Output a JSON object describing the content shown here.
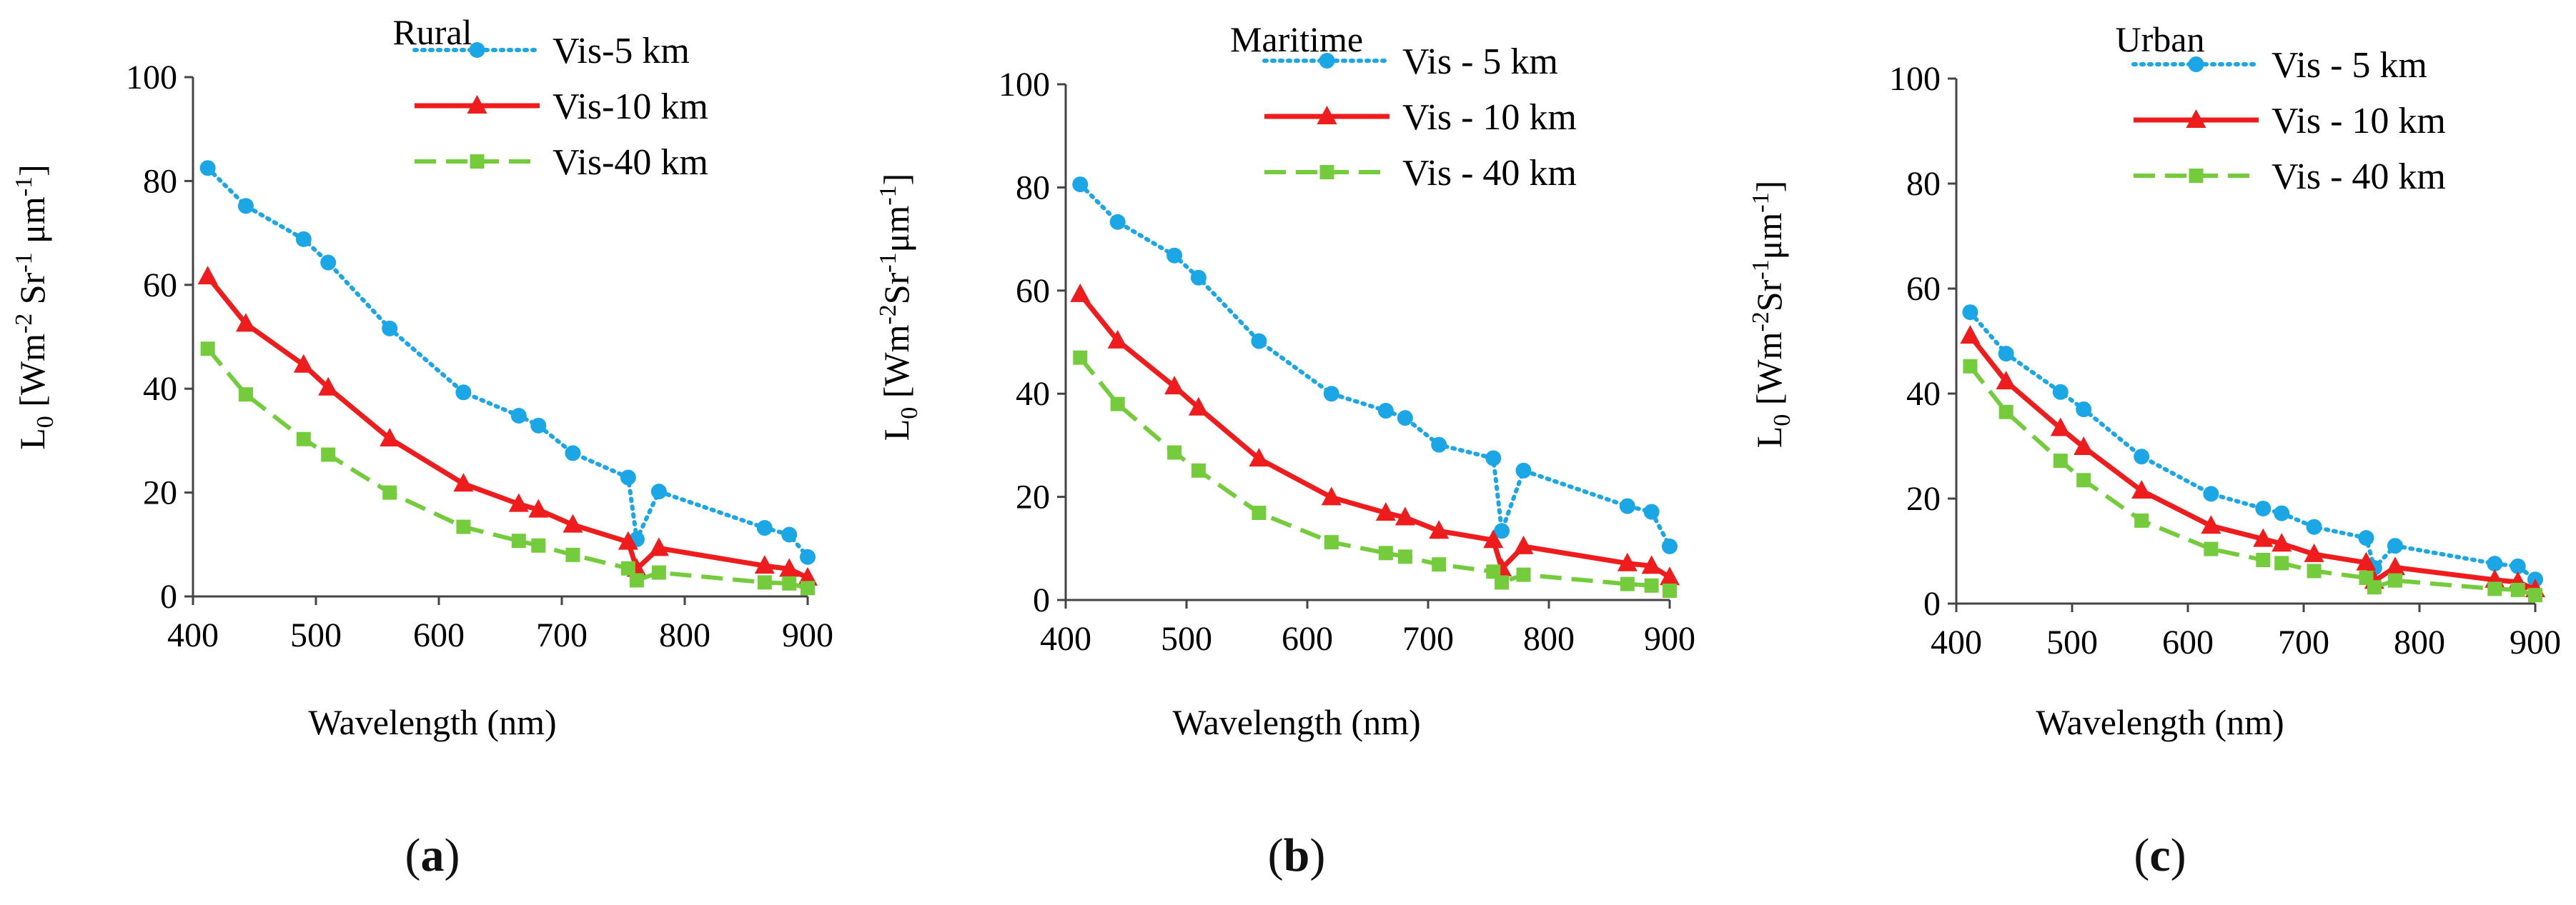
{
  "colors": {
    "vis5": "#1ba6e6",
    "vis10": "#ee1c1c",
    "vis40": "#74cc3c",
    "axis": "#444444",
    "text": "#111111"
  },
  "chart_data": [
    {
      "type": "line",
      "title": "Rural",
      "panel_label": "a",
      "xlabel": "Wavelength (nm)",
      "ylabel": {
        "main": "L",
        "sub": "0",
        "unit_pre": " [Wm",
        "sup1": "-2",
        "unit_mid": " Sr",
        "sup2": "-1",
        "unit_mid2": " μm",
        "sup3": "-1",
        "unit_post": "]"
      },
      "xlim": [
        400,
        900
      ],
      "ylim": [
        0,
        100
      ],
      "xticks": [
        400,
        500,
        600,
        700,
        800,
        900
      ],
      "yticks": [
        0,
        20,
        40,
        60,
        80,
        100
      ],
      "legend_position": "top-right",
      "series": [
        {
          "name": "Vis-5 km",
          "style": "dotted",
          "marker": "circle",
          "color_key": "vis5",
          "x": [
            412,
            443,
            490,
            510,
            560,
            620,
            665,
            681,
            709,
            754,
            761,
            779,
            865,
            885,
            900
          ],
          "y": [
            82.5,
            75.2,
            68.8,
            64.3,
            51.6,
            39.3,
            34.8,
            32.9,
            27.6,
            22.9,
            11,
            20.2,
            13.2,
            11.9,
            7.6
          ]
        },
        {
          "name": "Vis-10 km",
          "style": "solid",
          "marker": "triangle",
          "color_key": "vis10",
          "x": [
            412,
            443,
            490,
            510,
            560,
            620,
            665,
            681,
            709,
            754,
            761,
            779,
            865,
            885,
            900
          ],
          "y": [
            61.6,
            52.5,
            44.6,
            40.2,
            30.4,
            21.7,
            17.8,
            16.7,
            13.8,
            10.5,
            5.3,
            9.3,
            5.9,
            5.3,
            3.6
          ]
        },
        {
          "name": "Vis-40 km",
          "style": "dashed",
          "marker": "square",
          "color_key": "vis40",
          "x": [
            412,
            443,
            490,
            510,
            560,
            620,
            665,
            681,
            709,
            754,
            761,
            779,
            865,
            885,
            900
          ],
          "y": [
            47.7,
            38.9,
            30.3,
            27.3,
            20,
            13.4,
            10.7,
            9.8,
            8,
            5.4,
            3.1,
            4.6,
            2.7,
            2.5,
            1.6
          ]
        }
      ]
    },
    {
      "type": "line",
      "title": "Maritime",
      "panel_label": "b",
      "xlabel": "Wavelength (nm)",
      "ylabel": {
        "main": "L",
        "sub": "0",
        "unit_pre": " [Wm",
        "sup1": "-2",
        "unit_mid": "Sr",
        "sup2": "-1",
        "unit_mid2": "μm",
        "sup3": "-1",
        "unit_post": "]"
      },
      "xlim": [
        400,
        900
      ],
      "ylim": [
        0,
        100
      ],
      "xticks": [
        400,
        500,
        600,
        700,
        800,
        900
      ],
      "yticks": [
        0,
        20,
        40,
        60,
        80,
        100
      ],
      "legend_position": "top-right",
      "series": [
        {
          "name": "Vis - 5 km",
          "style": "dotted",
          "marker": "circle",
          "color_key": "vis5",
          "x": [
            412,
            443,
            490,
            510,
            560,
            620,
            665,
            681,
            709,
            754,
            761,
            779,
            865,
            885,
            900
          ],
          "y": [
            80.6,
            73.3,
            66.8,
            62.5,
            50.2,
            40,
            36.7,
            35.3,
            30.1,
            27.5,
            13.4,
            25.1,
            18.2,
            17.1,
            10.4
          ]
        },
        {
          "name": "Vis - 10 km",
          "style": "solid",
          "marker": "triangle",
          "color_key": "vis10",
          "x": [
            412,
            443,
            490,
            510,
            560,
            620,
            665,
            681,
            709,
            754,
            761,
            779,
            865,
            885,
            900
          ],
          "y": [
            59.3,
            50.3,
            41.4,
            37.3,
            27.4,
            19.9,
            16.9,
            16,
            13.4,
            11.6,
            6.1,
            10.4,
            7.1,
            6.6,
            4.4
          ]
        },
        {
          "name": "Vis - 40 km",
          "style": "dashed",
          "marker": "square",
          "color_key": "vis40",
          "x": [
            412,
            443,
            490,
            510,
            560,
            620,
            665,
            681,
            709,
            754,
            761,
            779,
            865,
            885,
            900
          ],
          "y": [
            47,
            38,
            28.6,
            25.1,
            16.9,
            11.2,
            9.1,
            8.4,
            6.9,
            5.5,
            3.4,
            4.9,
            3.1,
            2.8,
            1.8
          ]
        }
      ]
    },
    {
      "type": "line",
      "title": "Urban",
      "panel_label": "c",
      "xlabel": "Wavelength (nm)",
      "ylabel": {
        "main": "L",
        "sub": "0",
        "unit_pre": " [Wm",
        "sup1": "-2",
        "unit_mid": "Sr",
        "sup2": "-1",
        "unit_mid2": "μm",
        "sup3": "-1",
        "unit_post": "]"
      },
      "xlim": [
        400,
        900
      ],
      "ylim": [
        0,
        100
      ],
      "xticks": [
        400,
        500,
        600,
        700,
        800,
        900
      ],
      "yticks": [
        0,
        20,
        40,
        60,
        80,
        100
      ],
      "legend_position": "top-right",
      "series": [
        {
          "name": "Vis - 5 km",
          "style": "dotted",
          "marker": "circle",
          "color_key": "vis5",
          "x": [
            412,
            443,
            490,
            510,
            560,
            620,
            665,
            681,
            709,
            754,
            761,
            779,
            865,
            885,
            900
          ],
          "y": [
            55.5,
            47.6,
            40.3,
            37,
            28,
            20.9,
            18.1,
            17.2,
            14.6,
            12.5,
            6.8,
            11,
            7.6,
            7.1,
            4.6
          ]
        },
        {
          "name": "Vis - 10 km",
          "style": "solid",
          "marker": "triangle",
          "color_key": "vis10",
          "x": [
            412,
            443,
            490,
            510,
            560,
            620,
            665,
            681,
            709,
            754,
            761,
            779,
            865,
            885,
            900
          ],
          "y": [
            51,
            42.3,
            33.4,
            29.8,
            21.5,
            14.8,
            12.3,
            11.4,
            9.4,
            7.8,
            4.3,
            6.9,
            4.5,
            4.1,
            2.7
          ]
        },
        {
          "name": "Vis - 40 km",
          "style": "dashed",
          "marker": "square",
          "color_key": "vis40",
          "x": [
            412,
            443,
            490,
            510,
            560,
            620,
            665,
            681,
            709,
            754,
            761,
            779,
            865,
            885,
            900
          ],
          "y": [
            45.2,
            36.5,
            27.2,
            23.5,
            15.8,
            10.4,
            8.3,
            7.7,
            6.2,
            4.9,
            3.1,
            4.4,
            2.8,
            2.6,
            1.6
          ]
        }
      ]
    }
  ]
}
